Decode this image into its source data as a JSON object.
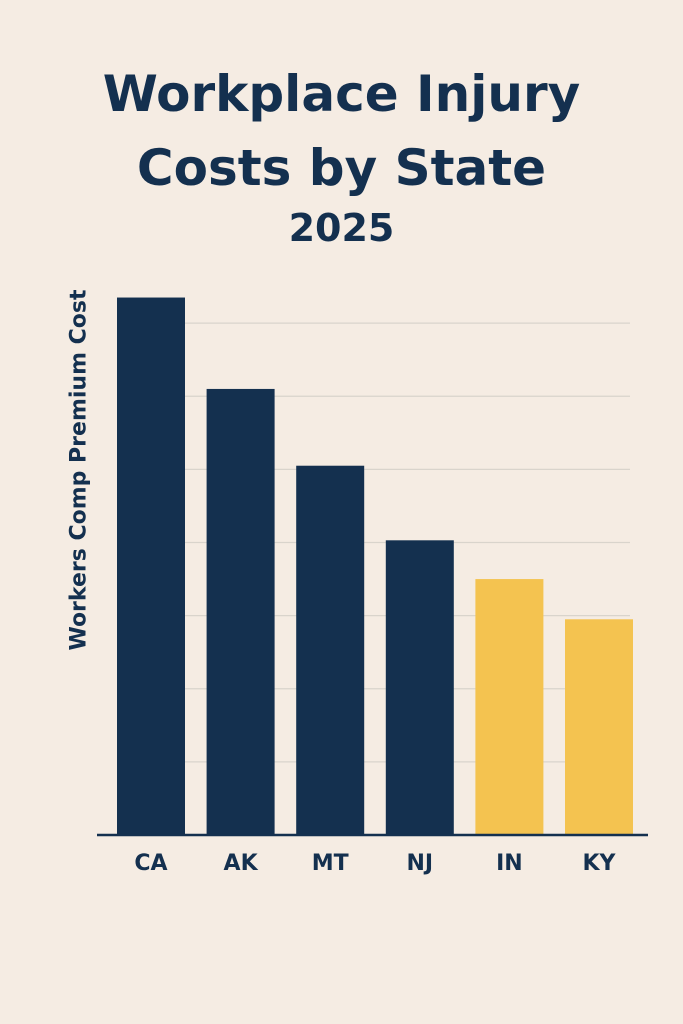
{
  "chart_data": {
    "type": "bar",
    "title_line1": "Workplace Injury",
    "title_line2": "Costs by State",
    "subtitle": "2025",
    "ylabel": "Workers Comp Premium Cost",
    "xlabel": "",
    "categories": [
      "CA",
      "AK",
      "MT",
      "NJ",
      "IN",
      "KY"
    ],
    "values": [
      7.35,
      6.1,
      5.05,
      4.03,
      3.5,
      2.95
    ],
    "highlight": [
      false,
      false,
      false,
      false,
      true,
      true
    ],
    "ylim": [
      0,
      8
    ],
    "grid": true,
    "colors": {
      "primary": "#14304f",
      "highlight": "#f4c350",
      "grid": "#d9d4cc",
      "axis": "#14304f"
    }
  }
}
